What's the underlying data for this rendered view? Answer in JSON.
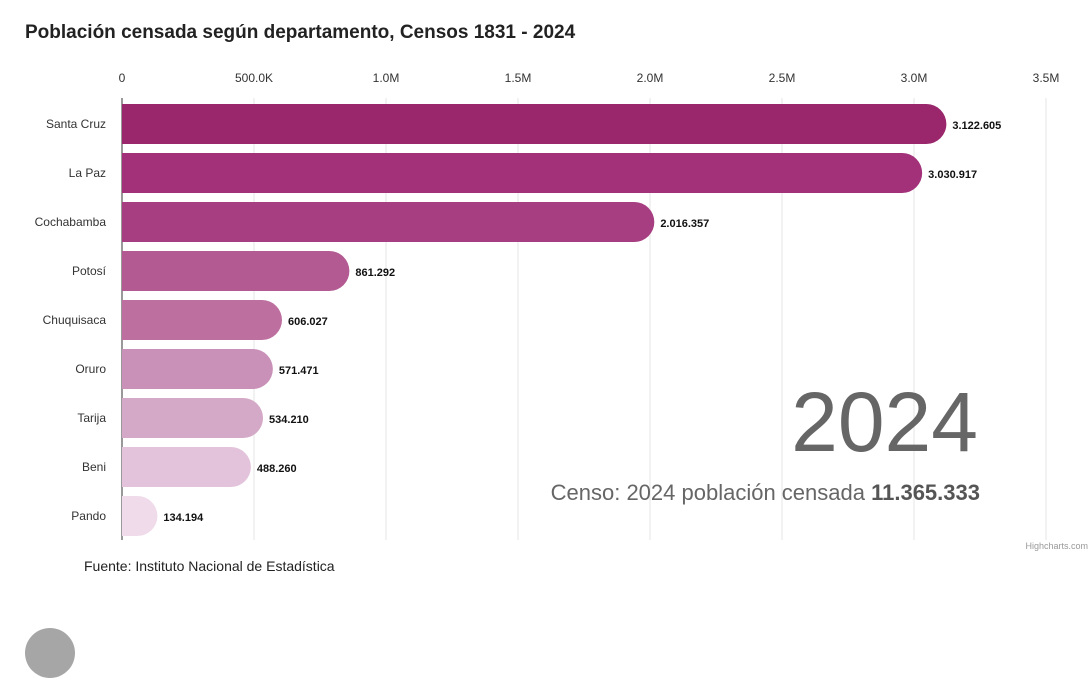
{
  "chart_data": {
    "type": "bar",
    "orientation": "horizontal",
    "title": "Población censada según departamento, Censos 1831 - 2024",
    "categories": [
      "Santa Cruz",
      "La Paz",
      "Cochabamba",
      "Potosí",
      "Chuquisaca",
      "Oruro",
      "Tarija",
      "Beni",
      "Pando"
    ],
    "values": [
      3122605,
      3030917,
      2016357,
      861292,
      606027,
      571471,
      534210,
      488260,
      134194
    ],
    "value_labels": [
      "3.122.605",
      "3.030.917",
      "2.016.357",
      "861.292",
      "606.027",
      "571.471",
      "534.210",
      "488.260",
      "134.194"
    ],
    "colors": [
      "#9a276c",
      "#a2317a",
      "#a83e82",
      "#b35a93",
      "#bd6fa0",
      "#c990b8",
      "#d4a9c7",
      "#e3c3db",
      "#f0dbeb"
    ],
    "xlim": [
      0,
      3500000
    ],
    "x_ticks": [
      0,
      500000,
      1000000,
      1500000,
      2000000,
      2500000,
      3000000,
      3500000
    ],
    "x_tick_labels": [
      "0",
      "500.0K",
      "1.0M",
      "1.5M",
      "2.0M",
      "2.5M",
      "3.0M",
      "3.5M"
    ],
    "x_axis_position": "top",
    "grid": true,
    "xlabel": "",
    "ylabel": ""
  },
  "year_label": "2024",
  "caption": {
    "prefix": "Censo: 2024 población censada ",
    "total": "11.365.333"
  },
  "source": "Fuente: Instituto Nacional de Estadística",
  "credits": "Highcharts.com",
  "play_button": {
    "icon": "play-icon"
  }
}
